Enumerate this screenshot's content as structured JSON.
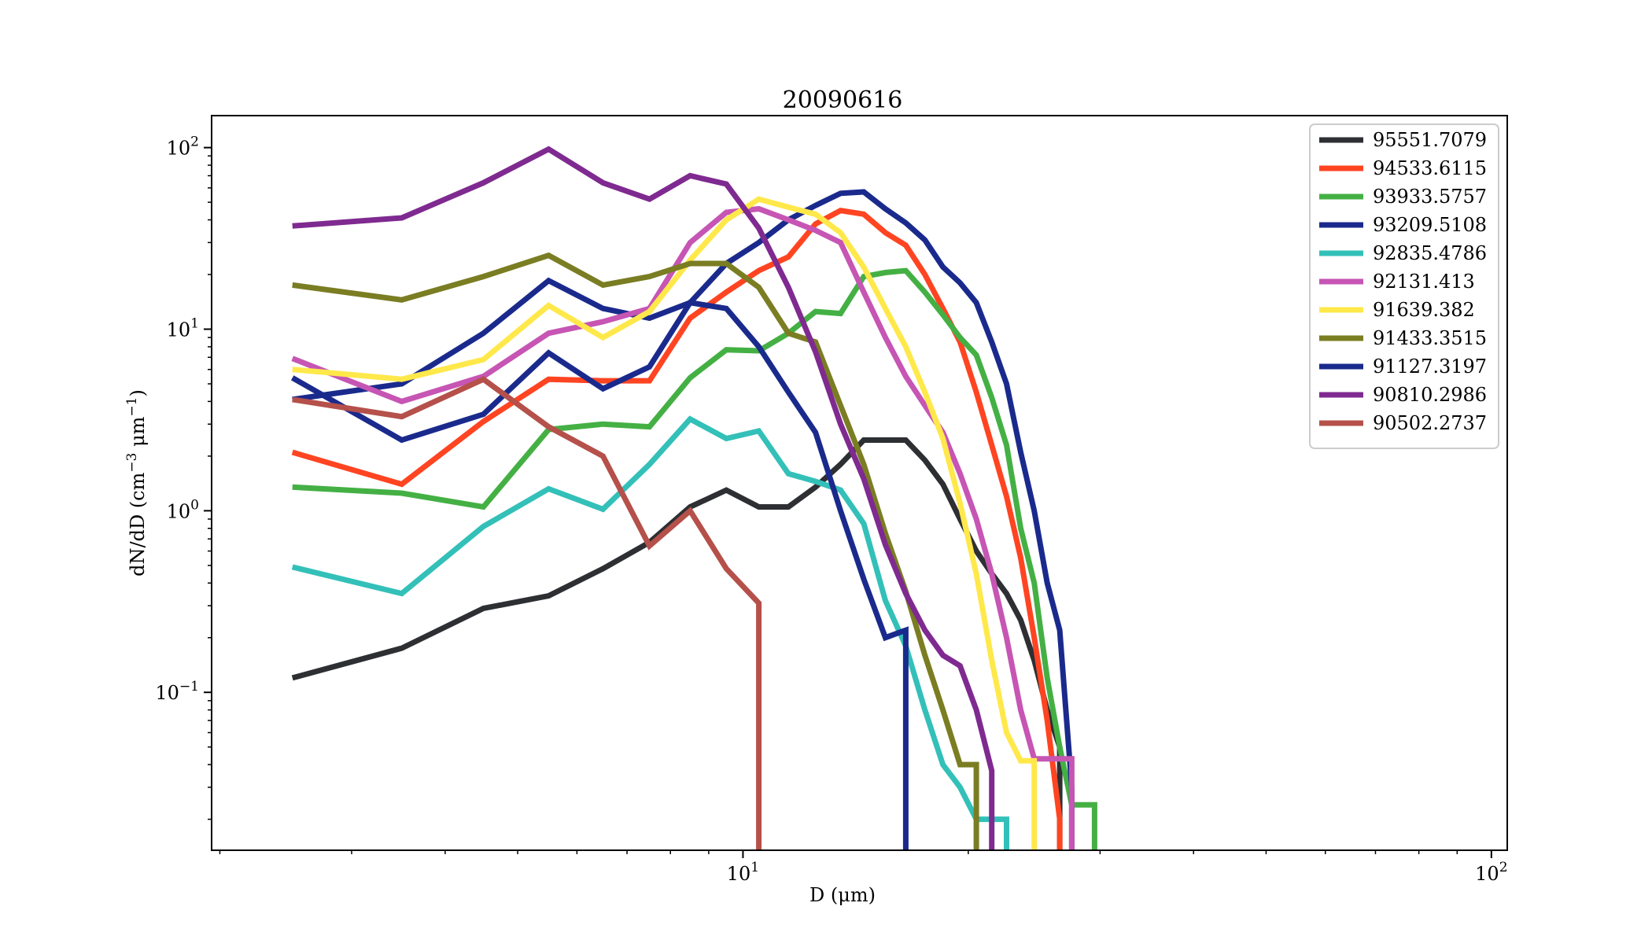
{
  "chart_data": {
    "type": "line",
    "title": "20090616",
    "xlabel": "D (μm)",
    "ylabel": "dN/dD (cm⁻³ μm⁻¹)",
    "xscale": "log",
    "yscale": "log",
    "xlim": [
      1.95,
      105
    ],
    "ylim": [
      0.0135,
      150
    ],
    "xtick_labels": [
      {
        "value": 10,
        "base": "10",
        "exp": "1"
      },
      {
        "value": 100,
        "base": "10",
        "exp": "2"
      }
    ],
    "ytick_labels": [
      {
        "value": 0.1,
        "base": "10",
        "exp": "−1"
      },
      {
        "value": 1,
        "base": "10",
        "exp": "0"
      },
      {
        "value": 10,
        "base": "10",
        "exp": "1"
      },
      {
        "value": 100,
        "base": "10",
        "exp": "2"
      }
    ],
    "grid": false,
    "legend_position": "top-right",
    "series": [
      {
        "name": "95551.7079",
        "color": "#2d2f33",
        "x": [
          2.5,
          3.5,
          4.5,
          5.5,
          6.5,
          7.5,
          8.5,
          9.5,
          10.5,
          11.5,
          12.5,
          13.5,
          14.5,
          15.5,
          16.5,
          17.5,
          18.5,
          19.5,
          20.5,
          21.5,
          22.5,
          23.5,
          24.5,
          25.5,
          26.5
        ],
        "y": [
          0.12,
          0.175,
          0.29,
          0.34,
          0.48,
          0.67,
          1.05,
          1.3,
          1.05,
          1.05,
          1.35,
          1.8,
          2.45,
          2.45,
          2.45,
          1.9,
          1.4,
          0.9,
          0.6,
          0.45,
          0.35,
          0.25,
          0.15,
          0.08,
          0.05
        ]
      },
      {
        "name": "94533.6115",
        "color": "#ff4422",
        "x": [
          2.5,
          3.5,
          4.5,
          5.5,
          6.5,
          7.5,
          8.5,
          9.5,
          10.5,
          11.5,
          12.5,
          13.5,
          14.5,
          15.5,
          16.5,
          17.5,
          18.5,
          19.5,
          20.5,
          21.5,
          22.5,
          23.5,
          24.5,
          25.5,
          26.5
        ],
        "y": [
          2.1,
          1.4,
          3.1,
          5.3,
          5.2,
          5.2,
          11.5,
          16.0,
          21.0,
          25.0,
          38.0,
          45.0,
          43.0,
          34.0,
          29.0,
          20.0,
          13.0,
          8.5,
          4.5,
          2.3,
          1.2,
          0.55,
          0.2,
          0.07,
          0.02
        ]
      },
      {
        "name": "93933.5757",
        "color": "#44b044",
        "x": [
          2.5,
          3.5,
          4.5,
          5.5,
          6.5,
          7.5,
          8.5,
          9.5,
          10.5,
          11.5,
          12.5,
          13.5,
          14.5,
          15.5,
          16.5,
          17.5,
          18.5,
          19.5,
          20.5,
          21.5,
          22.5,
          23.5,
          24.5,
          25.5,
          26.5,
          27.5,
          28.5,
          29.5
        ],
        "y": [
          1.35,
          1.25,
          1.05,
          2.8,
          3.0,
          2.9,
          5.4,
          7.7,
          7.6,
          9.5,
          12.5,
          12.2,
          19.5,
          20.5,
          21.0,
          16.0,
          12.0,
          9.0,
          7.2,
          4.2,
          2.3,
          0.8,
          0.4,
          0.12,
          0.05,
          0.024,
          0.024,
          0.024
        ]
      },
      {
        "name": "93209.5108",
        "color": "#1a2a8c",
        "x": [
          2.5,
          3.5,
          4.5,
          5.5,
          6.5,
          7.5,
          8.5,
          9.5,
          10.5,
          11.5,
          12.5,
          13.5,
          14.5,
          15.5,
          16.5,
          17.5,
          18.5,
          19.5,
          20.5,
          21.5,
          22.5,
          23.5,
          24.5,
          25.5,
          26.5,
          27.5
        ],
        "y": [
          4.1,
          5.0,
          9.5,
          18.5,
          13.0,
          11.5,
          14.0,
          23.0,
          30.0,
          40.0,
          48.0,
          56.0,
          57.0,
          46.0,
          38.5,
          31.0,
          22.0,
          18.0,
          14.0,
          8.5,
          5.0,
          2.1,
          1.0,
          0.4,
          0.22,
          0.03
        ]
      },
      {
        "name": "92835.4786",
        "color": "#33c0b8",
        "x": [
          2.5,
          3.5,
          4.5,
          5.5,
          6.5,
          7.5,
          8.5,
          9.5,
          10.5,
          11.5,
          12.5,
          13.5,
          14.5,
          15.5,
          16.5,
          17.5,
          18.5,
          19.5,
          20.5,
          21.5,
          22.5
        ],
        "y": [
          0.49,
          0.35,
          0.82,
          1.32,
          1.02,
          1.8,
          3.2,
          2.5,
          2.75,
          1.6,
          1.45,
          1.3,
          0.85,
          0.32,
          0.18,
          0.08,
          0.04,
          0.03,
          0.02,
          0.02,
          0.02
        ]
      },
      {
        "name": "92131.413",
        "color": "#c655b4",
        "x": [
          2.5,
          3.5,
          4.5,
          5.5,
          6.5,
          7.5,
          8.5,
          9.5,
          10.5,
          11.5,
          12.5,
          13.5,
          14.5,
          15.5,
          16.5,
          17.5,
          18.5,
          19.5,
          20.5,
          21.5,
          22.5,
          23.5,
          24.5,
          25.5,
          26.5,
          27.5
        ],
        "y": [
          6.9,
          4.0,
          5.5,
          9.5,
          11.0,
          13.0,
          30.0,
          44.0,
          46.0,
          40.0,
          35.0,
          30.0,
          16.0,
          9.0,
          5.5,
          3.8,
          2.7,
          1.6,
          0.9,
          0.45,
          0.2,
          0.08,
          0.043,
          0.043,
          0.043,
          0.043
        ]
      },
      {
        "name": "91639.382",
        "color": "#ffe84a",
        "x": [
          2.5,
          3.5,
          4.5,
          5.5,
          6.5,
          7.5,
          8.5,
          9.5,
          10.5,
          11.5,
          12.5,
          13.5,
          14.5,
          15.5,
          16.5,
          17.5,
          18.5,
          19.5,
          20.5,
          21.5,
          22.5,
          23.5,
          24.5
        ],
        "y": [
          6.0,
          5.3,
          6.8,
          13.5,
          9.0,
          12.5,
          24.0,
          40.0,
          52.0,
          47.0,
          43.0,
          34.0,
          22.0,
          13.0,
          8.0,
          4.5,
          2.5,
          1.1,
          0.45,
          0.15,
          0.06,
          0.042,
          0.042
        ]
      },
      {
        "name": "91433.3515",
        "color": "#7a7d22",
        "x": [
          2.5,
          3.5,
          4.5,
          5.5,
          6.5,
          7.5,
          8.5,
          9.5,
          10.5,
          11.5,
          12.5,
          13.5,
          14.5,
          15.5,
          16.5,
          17.5,
          18.5,
          19.5,
          20.5
        ],
        "y": [
          17.5,
          14.5,
          19.5,
          25.5,
          17.5,
          19.5,
          23.0,
          23.0,
          17.0,
          9.5,
          8.5,
          3.8,
          1.8,
          0.75,
          0.36,
          0.16,
          0.08,
          0.04,
          0.04
        ]
      },
      {
        "name": "91127.3197",
        "color": "#1a2a8c",
        "x": [
          2.5,
          3.5,
          4.5,
          5.5,
          6.5,
          7.5,
          8.5,
          9.5,
          10.5,
          11.5,
          12.5,
          13.5,
          14.5,
          15.5,
          16.5
        ],
        "y": [
          5.4,
          2.45,
          3.4,
          7.4,
          4.7,
          6.2,
          14.0,
          13.0,
          8.0,
          4.5,
          2.7,
          1.0,
          0.42,
          0.2,
          0.22
        ]
      },
      {
        "name": "90810.2986",
        "color": "#7f2a90",
        "x": [
          2.5,
          3.5,
          4.5,
          5.5,
          6.5,
          7.5,
          8.5,
          9.5,
          10.5,
          11.5,
          12.5,
          13.5,
          14.5,
          15.5,
          16.5,
          17.5,
          18.5,
          19.5,
          20.5,
          21.5
        ],
        "y": [
          37.0,
          41.0,
          64.0,
          98.0,
          64.0,
          52.0,
          70.0,
          63.0,
          36.0,
          17.0,
          7.5,
          3.0,
          1.5,
          0.65,
          0.35,
          0.22,
          0.16,
          0.14,
          0.08,
          0.037
        ]
      },
      {
        "name": "90502.2737",
        "color": "#b5504a",
        "x": [
          2.5,
          3.5,
          4.5,
          5.5,
          6.5,
          7.5,
          8.5,
          9.5,
          10.5
        ],
        "y": [
          4.1,
          3.3,
          5.3,
          2.9,
          2.0,
          0.64,
          1.0,
          0.48,
          0.31
        ]
      }
    ]
  }
}
